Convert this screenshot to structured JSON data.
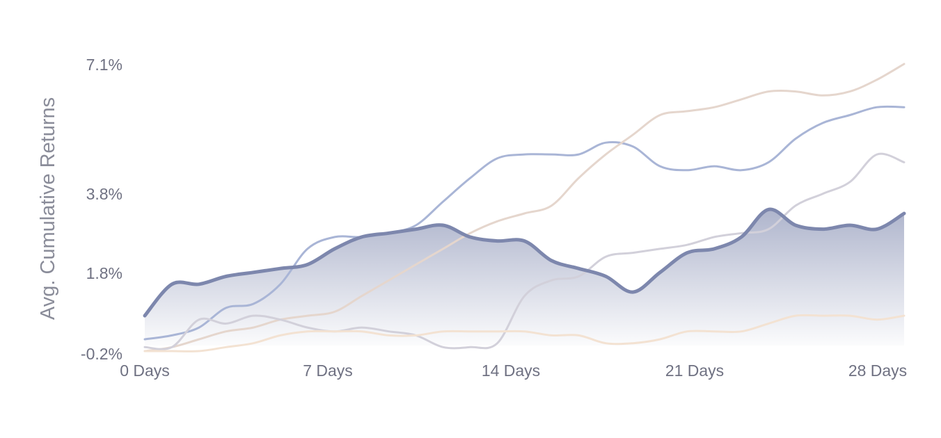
{
  "chart_data": {
    "type": "line",
    "title": "",
    "xlabel": "",
    "ylabel": "Avg. Cumulative Returns",
    "x_ticks": [
      "0 Days",
      "7 Days",
      "14 Days",
      "21 Days",
      "28 Days"
    ],
    "y_ticks": [
      "7.1%",
      "3.8%",
      "1.8%",
      "-0.2%"
    ],
    "xlim": [
      0,
      28
    ],
    "ylim": [
      -0.2,
      7.1
    ],
    "grid": false,
    "legend": "none",
    "x": [
      0,
      1,
      2,
      3,
      4,
      5,
      6,
      7,
      8,
      9,
      10,
      11,
      12,
      13,
      14,
      15,
      16,
      17,
      18,
      19,
      20,
      21,
      22,
      23,
      24,
      25,
      26,
      27,
      28
    ],
    "highlight_series_index": 0,
    "series": [
      {
        "color": "#7d87ad",
        "highlighted": true,
        "filled": true,
        "values": [
          0.7,
          1.5,
          1.5,
          1.7,
          1.8,
          1.9,
          2.0,
          2.4,
          2.7,
          2.8,
          2.9,
          3.0,
          2.7,
          2.6,
          2.6,
          2.1,
          1.9,
          1.7,
          1.3,
          1.8,
          2.3,
          2.4,
          2.7,
          3.4,
          3.0,
          2.9,
          3.0,
          2.9,
          3.3
        ]
      },
      {
        "color": "#a9b5d6",
        "values": [
          0.1,
          0.2,
          0.4,
          0.9,
          1.0,
          1.5,
          2.4,
          2.7,
          2.7,
          2.8,
          3.0,
          3.6,
          4.2,
          4.7,
          4.8,
          4.8,
          4.8,
          5.1,
          5.0,
          4.5,
          4.4,
          4.5,
          4.4,
          4.6,
          5.2,
          5.6,
          5.8,
          6.0,
          6.0
        ]
      },
      {
        "color": "#e5d6cd",
        "values": [
          -0.2,
          -0.1,
          0.1,
          0.3,
          0.4,
          0.6,
          0.7,
          0.8,
          1.2,
          1.6,
          2.0,
          2.4,
          2.8,
          3.1,
          3.3,
          3.5,
          4.2,
          4.8,
          5.3,
          5.8,
          5.9,
          6.0,
          6.2,
          6.4,
          6.4,
          6.3,
          6.4,
          6.7,
          7.1
        ]
      },
      {
        "color": "#d2d0da",
        "values": [
          -0.1,
          -0.1,
          0.6,
          0.5,
          0.7,
          0.6,
          0.4,
          0.3,
          0.4,
          0.3,
          0.2,
          -0.1,
          -0.1,
          0.0,
          1.2,
          1.6,
          1.7,
          2.2,
          2.3,
          2.4,
          2.5,
          2.7,
          2.8,
          2.9,
          3.5,
          3.8,
          4.1,
          4.8,
          4.6
        ]
      },
      {
        "color": "#f3e2d2",
        "values": [
          -0.2,
          -0.2,
          -0.2,
          -0.1,
          0.0,
          0.2,
          0.3,
          0.3,
          0.3,
          0.2,
          0.2,
          0.3,
          0.3,
          0.3,
          0.3,
          0.2,
          0.2,
          0.0,
          0.0,
          0.1,
          0.3,
          0.3,
          0.3,
          0.5,
          0.7,
          0.7,
          0.7,
          0.6,
          0.7
        ]
      }
    ]
  }
}
